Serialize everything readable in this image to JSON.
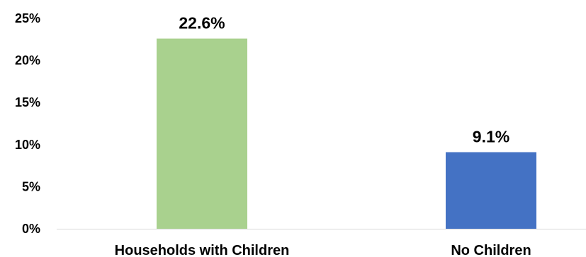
{
  "chart_data": {
    "type": "bar",
    "categories": [
      "Households with Children",
      "No Children"
    ],
    "values": [
      22.6,
      9.1
    ],
    "data_labels": [
      "22.6%",
      "9.1%"
    ],
    "colors": [
      "#a9d18e",
      "#4472c4"
    ],
    "ylim": [
      0,
      25
    ],
    "yticks": [
      0,
      5,
      10,
      15,
      20,
      25
    ],
    "ytick_labels": [
      "0%",
      "5%",
      "10%",
      "15%",
      "20%",
      "25%"
    ],
    "grid": false,
    "legend": "none",
    "axis_color": "#d9d9d9"
  }
}
